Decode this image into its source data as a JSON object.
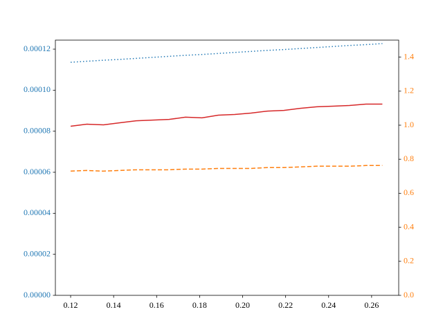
{
  "chart_data": {
    "type": "line",
    "x": [
      0.12,
      0.1276,
      0.1353,
      0.1429,
      0.1505,
      0.1582,
      0.1658,
      0.1734,
      0.1811,
      0.1887,
      0.1963,
      0.2039,
      0.2116,
      0.2192,
      0.2268,
      0.2345,
      0.2421,
      0.2497,
      0.2574,
      0.265
    ],
    "xlim": [
      0.1129,
      0.2726
    ],
    "xticks": [
      0.12,
      0.14,
      0.16,
      0.18,
      {
        "value": 0.2,
        "label": "0.20"
      },
      0.22,
      0.24,
      0.26
    ],
    "ylim": [
      0,
      0.0001244
    ],
    "yticks": [
      {
        "value": 0,
        "label": "0.00000"
      },
      2e-05,
      4e-05,
      6e-05,
      8e-05,
      {
        "value": 0.0001,
        "label": "0.00010"
      },
      0.00012
    ],
    "y_axis_color": "#1f77b4",
    "y2lim": [
      0,
      1.5
    ],
    "y2ticks": [
      {
        "value": 0,
        "label": "0.0"
      },
      0.2,
      0.4,
      0.6,
      0.8,
      {
        "value": 1,
        "label": "1.0"
      },
      1.2,
      1.4
    ],
    "y2_axis_color": "#ff7f0e",
    "series": [
      {
        "color": "#1f77b4",
        "dash": "dotted",
        "axis": "y",
        "values": [
          0.0001136,
          0.0001141,
          0.0001146,
          0.000115,
          0.0001155,
          0.000116,
          0.0001165,
          0.000117,
          0.0001174,
          0.0001179,
          0.0001184,
          0.0001189,
          0.0001194,
          0.0001198,
          0.0001203,
          0.0001208,
          0.0001213,
          0.0001218,
          0.0001222,
          0.0001227
        ]
      },
      {
        "color": "#d62728",
        "dash": "solid",
        "axis": "y2",
        "values": [
          0.994,
          1.006,
          1.002,
          1.014,
          1.026,
          1.03,
          1.034,
          1.047,
          1.043,
          1.059,
          1.063,
          1.071,
          1.083,
          1.087,
          1.099,
          1.108,
          1.112,
          1.116,
          1.124,
          1.124
        ]
      },
      {
        "color": "#ff7f0e",
        "dash": "dashed",
        "axis": "y2",
        "values": [
          0.73,
          0.734,
          0.73,
          0.734,
          0.738,
          0.738,
          0.738,
          0.742,
          0.742,
          0.746,
          0.746,
          0.746,
          0.751,
          0.751,
          0.755,
          0.759,
          0.759,
          0.759,
          0.763,
          0.763
        ]
      }
    ]
  }
}
